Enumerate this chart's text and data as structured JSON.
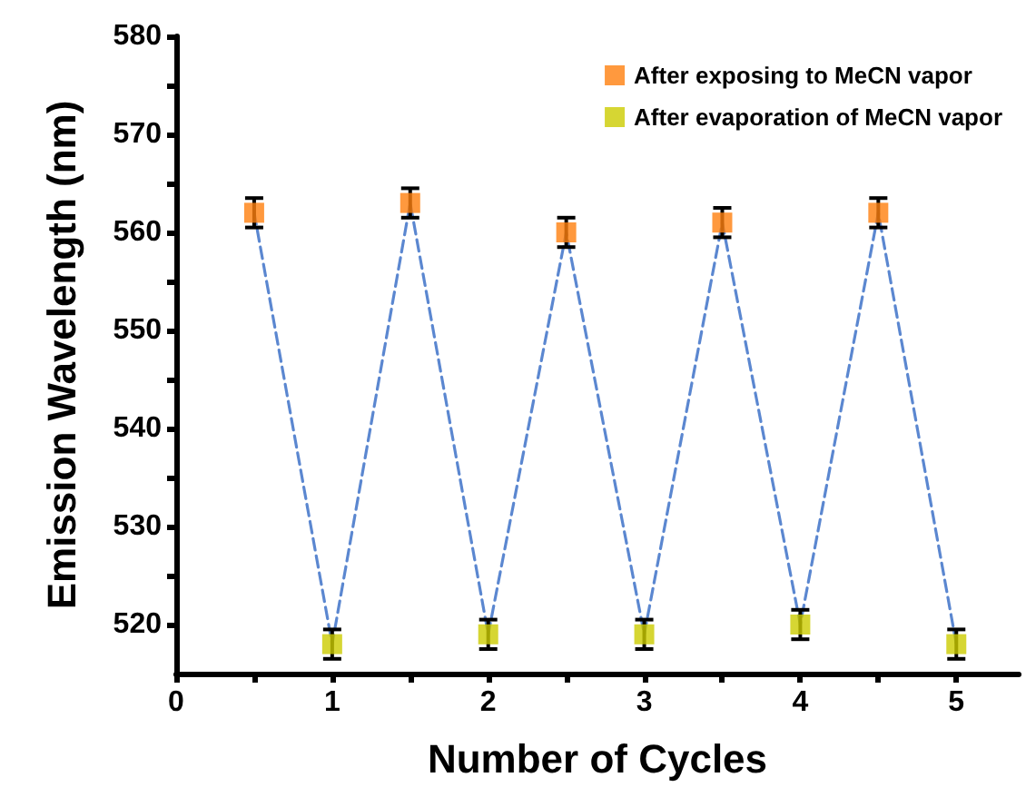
{
  "chart_data": {
    "type": "scatter",
    "xlabel": "Number of Cycles",
    "ylabel": "Emission Wavelength (nm)",
    "xlim": [
      0,
      5.4
    ],
    "xticks": [
      0,
      {
        "value": 0.5,
        "label": null
      },
      1,
      {
        "value": 1.5,
        "label": null
      },
      2,
      {
        "value": 2.5,
        "label": null
      },
      3,
      {
        "value": 3.5,
        "label": null
      },
      4,
      {
        "value": 4.5,
        "label": null
      },
      5
    ],
    "ylim": [
      515,
      580
    ],
    "yticks": [
      520,
      {
        "value": 525,
        "label": null
      },
      530,
      {
        "value": 535,
        "label": null
      },
      540,
      {
        "value": 545,
        "label": null
      },
      550,
      {
        "value": 555,
        "label": null
      },
      560,
      {
        "value": 565,
        "label": null
      },
      570,
      {
        "value": 575,
        "label": null
      },
      580
    ],
    "grid": false,
    "legend": "top right",
    "series": [
      {
        "type": "line",
        "color": "#5b87d0",
        "line_style": "dashed",
        "marker": "none",
        "x": [
          0.5,
          1,
          1.5,
          2,
          2.5,
          3,
          3.5,
          4,
          4.5,
          5
        ],
        "values": [
          562,
          518,
          563,
          519,
          560,
          519,
          561,
          520,
          562,
          518
        ]
      },
      {
        "name": "After exposing to MeCN vapor",
        "color": "#ff7f0e",
        "marker": "square",
        "x": [
          0.5,
          1.5,
          2.5,
          3.5,
          4.5
        ],
        "values": [
          562,
          563,
          560,
          561,
          562
        ],
        "errors": [
          1.5,
          1.5,
          1.5,
          1.5,
          1.5
        ]
      },
      {
        "name": "After evaporation of MeCN vapor",
        "color": "#cccc00",
        "marker": "square",
        "x": [
          1,
          2,
          3,
          4,
          5
        ],
        "values": [
          518,
          519,
          519,
          520,
          518
        ],
        "errors": [
          1.5,
          1.5,
          1.5,
          1.5,
          1.5
        ]
      }
    ]
  }
}
